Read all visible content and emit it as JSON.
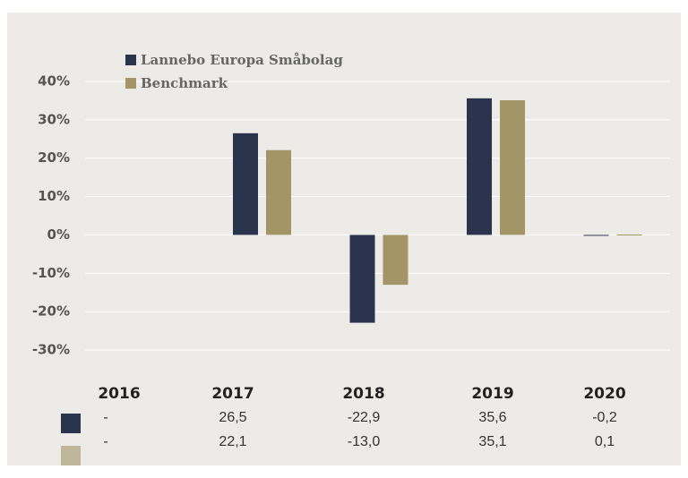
{
  "chart_data": {
    "type": "bar",
    "categories": [
      "2016",
      "2017",
      "2018",
      "2019",
      "2020"
    ],
    "series": [
      {
        "name": "Lannebo Europa Småbolag",
        "color": "#2b344d",
        "values": [
          null,
          26.5,
          -22.9,
          35.6,
          -0.2
        ],
        "value_labels": [
          "-",
          "26,5",
          "-22,9",
          "35,6",
          "-0,2"
        ]
      },
      {
        "name": "Benchmark",
        "color": "#a39565",
        "values": [
          null,
          22.1,
          -13.0,
          35.1,
          0.1
        ],
        "value_labels": [
          "-",
          "22,1",
          "-13,0",
          "35,1",
          "0,1"
        ]
      }
    ],
    "ylim": [
      -30,
      40
    ],
    "yticks": [
      {
        "value": 40,
        "label": "40%"
      },
      {
        "value": 30,
        "label": "30%"
      },
      {
        "value": 20,
        "label": "20%"
      },
      {
        "value": 10,
        "label": "10%"
      },
      {
        "value": 0,
        "label": "0%"
      },
      {
        "value": -10,
        "label": "-10%"
      },
      {
        "value": -20,
        "label": "-20%"
      },
      {
        "value": -30,
        "label": "-30%"
      }
    ],
    "grid": true
  }
}
